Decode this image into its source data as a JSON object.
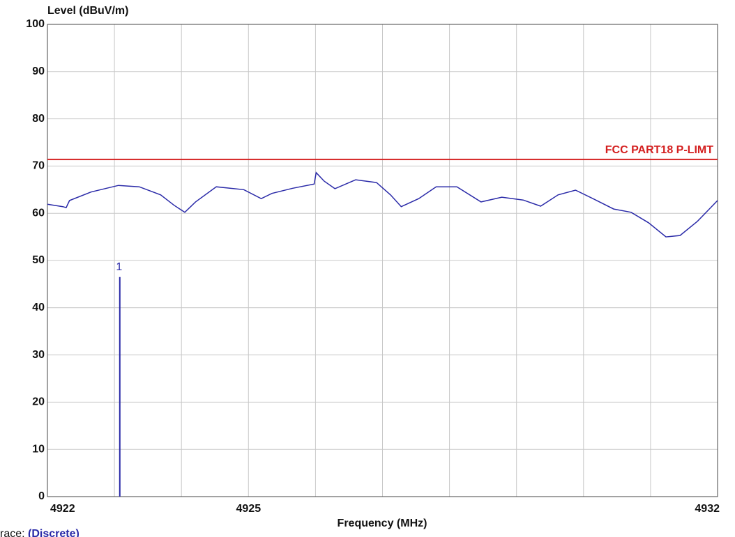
{
  "chart_data": {
    "type": "line",
    "y_label": "Level (dBuV/m)",
    "x_label": "Frequency (MHz)",
    "xlim": [
      4922,
      4932
    ],
    "xticks": [
      4922,
      {
        "value": 4923,
        "label": null
      },
      {
        "value": 4924,
        "label": null
      },
      4925,
      {
        "value": 4926,
        "label": null
      },
      {
        "value": 4927,
        "label": null
      },
      {
        "value": 4928,
        "label": null
      },
      {
        "value": 4929,
        "label": null
      },
      {
        "value": 4930,
        "label": null
      },
      {
        "value": 4931,
        "label": null
      },
      4932
    ],
    "ylim": [
      0,
      100
    ],
    "yticks": [
      0,
      10,
      20,
      30,
      40,
      50,
      60,
      70,
      80,
      90,
      100
    ],
    "grid": true,
    "series": [
      {
        "name": "(Discrete)",
        "color": "#2a2aa8",
        "x": [
          4922.0,
          4922.23,
          4922.28,
          4922.33,
          4922.65,
          4923.06,
          4923.37,
          4923.69,
          4923.89,
          4924.05,
          4924.21,
          4924.52,
          4924.93,
          4925.19,
          4925.35,
          4925.66,
          4925.98,
          4926.01,
          4926.13,
          4926.29,
          4926.6,
          4926.91,
          4927.12,
          4927.28,
          4927.54,
          4927.8,
          4928.11,
          4928.47,
          4928.78,
          4929.1,
          4929.36,
          4929.62,
          4929.88,
          4930.14,
          4930.45,
          4930.71,
          4930.97,
          4931.23,
          4931.44,
          4931.7,
          4932.0
        ],
        "values": [
          61.9,
          61.4,
          61.2,
          62.7,
          64.5,
          65.9,
          65.6,
          63.9,
          61.7,
          60.2,
          62.4,
          65.6,
          65.0,
          63.1,
          64.2,
          65.3,
          66.2,
          68.6,
          66.8,
          65.2,
          67.1,
          66.5,
          63.9,
          61.4,
          63.1,
          65.6,
          65.6,
          62.4,
          63.4,
          62.8,
          61.5,
          63.9,
          64.9,
          63.1,
          60.9,
          60.2,
          58.0,
          55.0,
          55.3,
          58.3,
          62.7
        ]
      }
    ],
    "limit": {
      "name": "FCC PART18 P-LIMT",
      "value": 71.4,
      "color": "#d42020"
    },
    "marker": {
      "label": "1",
      "x": 4923.08,
      "value": 46.5,
      "color": "#2a2aa8"
    },
    "trace_prefix": "race:"
  }
}
